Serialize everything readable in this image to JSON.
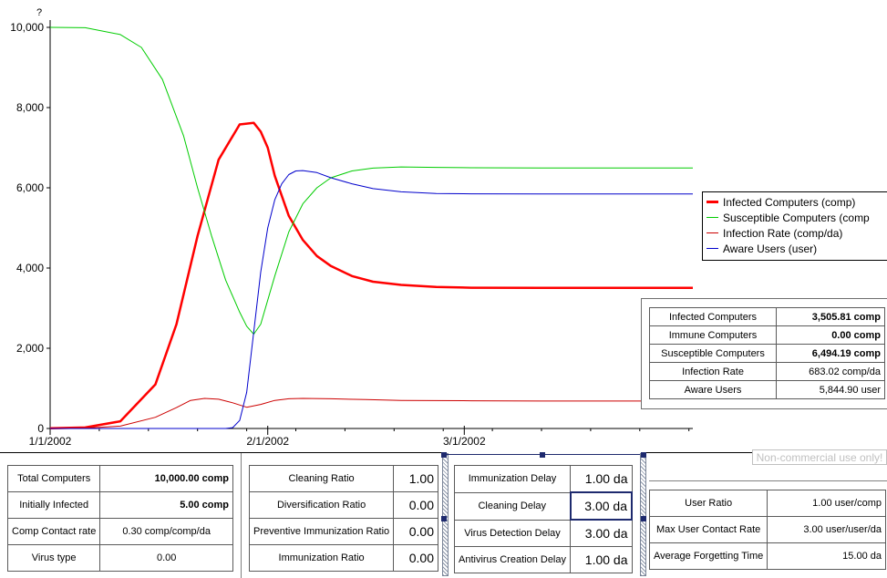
{
  "chart_data": {
    "type": "line",
    "y_unit_label": "?",
    "ylim": [
      0,
      10000
    ],
    "yticks": [
      "0",
      "2,000",
      "4,000",
      "6,000",
      "8,000",
      "10,000"
    ],
    "xticks": [
      "1/1/2002",
      "2/1/2002",
      "3/1/2002"
    ],
    "grid": false,
    "legend_position": "right",
    "series": [
      {
        "name": "Infected Computers (comp)",
        "color": "#ff0000",
        "width": 2.5,
        "x": [
          0,
          5,
          10,
          15,
          18,
          21,
          24,
          27,
          29,
          30,
          31,
          32,
          34,
          36,
          38,
          40,
          43,
          46,
          50,
          55,
          60,
          70,
          80,
          90
        ],
        "values": [
          5,
          25,
          180,
          1100,
          2600,
          4800,
          6700,
          7580,
          7620,
          7400,
          7000,
          6300,
          5300,
          4700,
          4300,
          4050,
          3800,
          3660,
          3580,
          3530,
          3510,
          3506,
          3506,
          3506
        ]
      },
      {
        "name": "Susceptible Computers (comp",
        "color": "#00cc00",
        "width": 1,
        "x": [
          0,
          5,
          10,
          13,
          16,
          19,
          21,
          23,
          25,
          27,
          28,
          29,
          30,
          32,
          34,
          36,
          38,
          40,
          43,
          46,
          50,
          55,
          60,
          70,
          80,
          90
        ],
        "values": [
          10000,
          9990,
          9820,
          9500,
          8700,
          7300,
          6000,
          4800,
          3700,
          2900,
          2550,
          2350,
          2600,
          3800,
          4900,
          5600,
          6000,
          6250,
          6420,
          6490,
          6520,
          6510,
          6500,
          6495,
          6494,
          6494
        ]
      },
      {
        "name": "Infection Rate (comp/da)",
        "color": "#cc0000",
        "width": 1,
        "x": [
          0,
          5,
          10,
          15,
          18,
          20,
          22,
          24,
          26,
          28,
          30,
          32,
          34,
          36,
          40,
          45,
          50,
          60,
          70,
          80,
          90
        ],
        "values": [
          0,
          10,
          60,
          280,
          520,
          700,
          750,
          730,
          640,
          530,
          600,
          700,
          740,
          750,
          740,
          720,
          700,
          690,
          685,
          683,
          683
        ]
      },
      {
        "name": "Aware Users (user)",
        "color": "#0000cc",
        "width": 1,
        "x": [
          0,
          25,
          26,
          27,
          28,
          29,
          30,
          31,
          32,
          33,
          34,
          35,
          36,
          38,
          40,
          43,
          46,
          50,
          55,
          60,
          70,
          80,
          90
        ],
        "values": [
          0,
          0,
          20,
          200,
          900,
          2400,
          3900,
          5000,
          5700,
          6100,
          6330,
          6420,
          6430,
          6380,
          6250,
          6100,
          5980,
          5900,
          5860,
          5850,
          5845,
          5845,
          5845
        ]
      }
    ]
  },
  "value_table": [
    {
      "label": "Infected Computers",
      "value": "3,505.81 comp",
      "bold": true
    },
    {
      "label": "Immune Computers",
      "value": "0.00 comp",
      "bold": true
    },
    {
      "label": "Susceptible Computers",
      "value": "6,494.19 comp",
      "bold": true
    },
    {
      "label": "Infection Rate",
      "value": "683.02 comp/da",
      "bold": false
    },
    {
      "label": "Aware Users",
      "value": "5,844.90 user",
      "bold": false
    }
  ],
  "watermark": "Non-commercial use only!",
  "panels": {
    "p1": [
      {
        "label": "Total Computers",
        "value": "10,000.00 comp",
        "bold": true
      },
      {
        "label": "Initially Infected",
        "value": "5.00 comp",
        "bold": true
      },
      {
        "label": "Comp Contact rate",
        "value": "0.30 comp/comp/da",
        "bold": false
      },
      {
        "label": "Virus type",
        "value": "0.00",
        "bold": false
      }
    ],
    "p2": [
      {
        "label": "Cleaning Ratio",
        "value": "1.00"
      },
      {
        "label": "Diversification Ratio",
        "value": "0.00"
      },
      {
        "label": "Preventive Immunization Ratio",
        "value": "0.00"
      },
      {
        "label": "Immunization Ratio",
        "value": "0.00"
      }
    ],
    "p3": [
      {
        "label": "Immunization Delay",
        "value": "1.00 da"
      },
      {
        "label": "Cleaning Delay",
        "value": "3.00 da"
      },
      {
        "label": "Virus Detection Delay",
        "value": "3.00 da"
      },
      {
        "label": "Antivirus Creation Delay",
        "value": "1.00 da"
      }
    ],
    "p4": [
      {
        "label": "User Ratio",
        "value": "1.00 user/comp"
      },
      {
        "label": "Max User Contact Rate",
        "value": "3.00 user/user/da"
      },
      {
        "label": "Average Forgetting Time",
        "value": "15.00 da"
      }
    ]
  }
}
